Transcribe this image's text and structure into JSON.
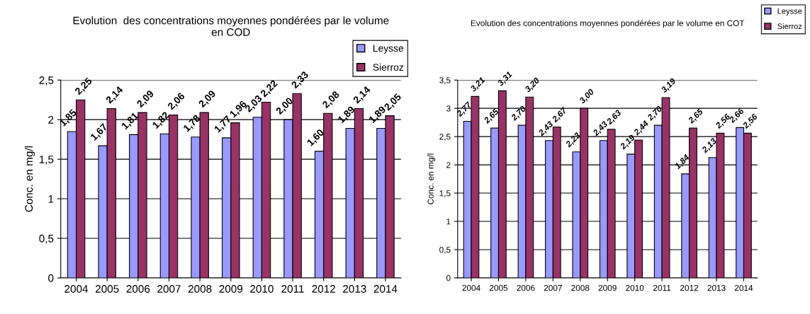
{
  "chart_data": [
    {
      "type": "bar",
      "title": "Evolution  des concentrations moyennes pondérées par le volume\nen COD",
      "ylabel": "Conc. en mg/l",
      "categories": [
        "2004",
        "2005",
        "2006",
        "2007",
        "2008",
        "2009",
        "2010",
        "2011",
        "2012",
        "2013",
        "2014"
      ],
      "series": [
        {
          "name": "Leysse",
          "color": "#9999ff",
          "values": [
            1.85,
            1.67,
            1.81,
            1.82,
            1.78,
            1.77,
            2.03,
            2.0,
            1.6,
            1.89,
            1.89
          ],
          "value_labels": [
            "1,85",
            "1,67",
            "1,81",
            "1,82",
            "1,78",
            "1,77",
            "2,03",
            "2,00",
            "1,60",
            "1,89",
            "1,89"
          ]
        },
        {
          "name": "Sierroz",
          "color": "#993366",
          "values": [
            2.25,
            2.14,
            2.09,
            2.06,
            2.09,
            1.96,
            2.22,
            2.33,
            2.08,
            2.14,
            2.05
          ],
          "value_labels": [
            "2,25",
            "2,14",
            "2,09",
            "2,06",
            "2,09",
            "1,96",
            "2,22",
            "2,33",
            "2,08",
            "2,14",
            "2,05"
          ]
        }
      ],
      "ylim": [
        0,
        2.5
      ],
      "yticks": [
        0,
        {
          "value": 0.5,
          "label": "0,5"
        },
        1,
        {
          "value": 1.5,
          "label": "1,5"
        },
        2,
        {
          "value": 2.5,
          "label": "2,5"
        }
      ],
      "grid": "y",
      "legend": "top right"
    },
    {
      "type": "bar",
      "title": "Evolution des concentrations moyennes pondérées par le volume en COT",
      "ylabel": "Conc. en mg/l",
      "categories": [
        "2004",
        "2005",
        "2006",
        "2007",
        "2008",
        "2009",
        "2010",
        "2011",
        "2012",
        "2013",
        "2014"
      ],
      "series": [
        {
          "name": "Leysse",
          "color": "#9999ff",
          "values": [
            2.77,
            2.65,
            2.7,
            2.43,
            2.23,
            2.43,
            2.19,
            2.7,
            1.84,
            2.13,
            2.66
          ],
          "value_labels": [
            "2,77",
            "2,65",
            "2,70",
            "2,43",
            "2,23",
            "2,43",
            "2,19",
            "2,70",
            "1,84",
            "2,13",
            "2,66"
          ]
        },
        {
          "name": "Sierroz",
          "color": "#993366",
          "values": [
            3.21,
            3.31,
            3.2,
            2.67,
            3.0,
            2.63,
            2.44,
            3.19,
            2.65,
            2.56,
            2.56
          ],
          "value_labels": [
            "3,21",
            "3,31",
            "3,20",
            "2,67",
            "3,00",
            "2,63",
            "2,44",
            "3,19",
            "2,65",
            "2,56",
            "2,56"
          ]
        }
      ],
      "ylim": [
        0,
        3.5
      ],
      "yticks": [
        0,
        {
          "value": 0.5,
          "label": "0,5"
        },
        1,
        {
          "value": 1.5,
          "label": "1,5"
        },
        2,
        {
          "value": 2.5,
          "label": "2,5"
        },
        3,
        {
          "value": 3.5,
          "label": "3,5"
        }
      ],
      "grid": "y",
      "legend": "top right"
    }
  ]
}
